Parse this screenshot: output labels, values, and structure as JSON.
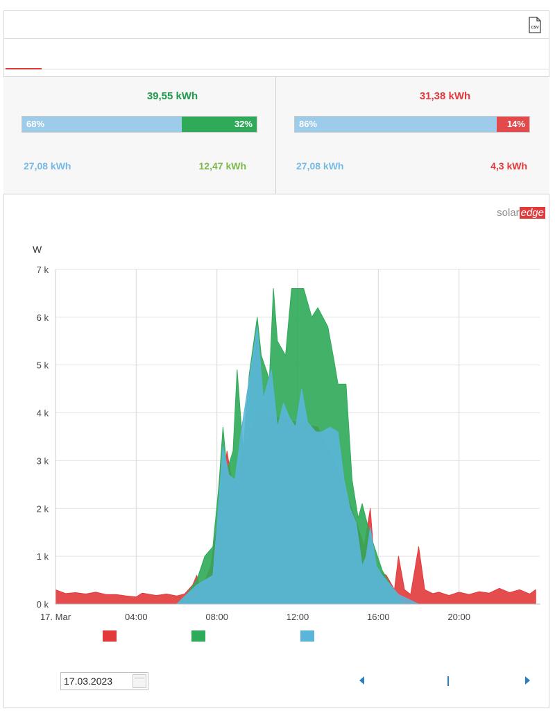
{
  "toolbar": {
    "csv_icon": "csv-file-icon",
    "csv_label": "CSV"
  },
  "summary": {
    "production": {
      "total": "39,55 kWh",
      "left_percent": "68%",
      "right_percent": "32%",
      "left_fraction": 0.68,
      "left_value": "27,08 kWh",
      "right_value": "12,47 kWh"
    },
    "consumption": {
      "total": "31,38 kWh",
      "left_percent": "86%",
      "right_percent": "14%",
      "left_fraction": 0.86,
      "left_value": "27,08 kWh",
      "right_value": "4,3 kWh"
    }
  },
  "logo": {
    "part1": "solar",
    "part2": "edge"
  },
  "colors": {
    "red": "#e2393b",
    "green": "#2eaa58",
    "blue": "#5bb5d9",
    "light_blue": "#9dcbea"
  },
  "chart_data": {
    "type": "area",
    "ylabel": "W",
    "x_unit": "hour of day",
    "xlim": [
      0,
      24
    ],
    "ylim": [
      0,
      7000
    ],
    "y_ticks": [
      "0 k",
      "1 k",
      "2 k",
      "3 k",
      "4 k",
      "5 k",
      "6 k",
      "7 k"
    ],
    "y_tick_values": [
      0,
      1000,
      2000,
      3000,
      4000,
      5000,
      6000,
      7000
    ],
    "x_ticks": [
      "17. Mar",
      "04:00",
      "08:00",
      "12:00",
      "16:00",
      "20:00"
    ],
    "x_tick_values": [
      0,
      4,
      8,
      12,
      16,
      20
    ],
    "grid": true,
    "series": [
      {
        "color": "#e2393b",
        "points": [
          [
            0,
            300
          ],
          [
            0.5,
            220
          ],
          [
            1,
            240
          ],
          [
            1.5,
            210
          ],
          [
            2,
            250
          ],
          [
            2.5,
            200
          ],
          [
            3,
            200
          ],
          [
            3.5,
            170
          ],
          [
            4,
            150
          ],
          [
            4.3,
            230
          ],
          [
            5,
            180
          ],
          [
            5.5,
            210
          ],
          [
            6,
            170
          ],
          [
            6.4,
            210
          ],
          [
            6.8,
            400
          ],
          [
            7.0,
            600
          ],
          [
            7.2,
            250
          ],
          [
            7.7,
            800
          ],
          [
            8.2,
            2200
          ],
          [
            8.5,
            3200
          ],
          [
            8.8,
            2400
          ],
          [
            9.2,
            3000
          ],
          [
            10,
            4000
          ],
          [
            11,
            3900
          ],
          [
            12,
            3800
          ],
          [
            13,
            3700
          ],
          [
            14,
            2800
          ],
          [
            14.5,
            2200
          ],
          [
            15,
            1600
          ],
          [
            15.3,
            1200
          ],
          [
            15.6,
            2000
          ],
          [
            15.8,
            900
          ],
          [
            16,
            700
          ],
          [
            16.4,
            600
          ],
          [
            16.8,
            300
          ],
          [
            17.0,
            1000
          ],
          [
            17.3,
            300
          ],
          [
            17.6,
            200
          ],
          [
            18.0,
            1200
          ],
          [
            18.3,
            300
          ],
          [
            18.7,
            220
          ],
          [
            19,
            250
          ],
          [
            19.5,
            180
          ],
          [
            20,
            250
          ],
          [
            20.5,
            200
          ],
          [
            21,
            260
          ],
          [
            21.5,
            230
          ],
          [
            22,
            330
          ],
          [
            22.5,
            240
          ],
          [
            23,
            300
          ],
          [
            23.5,
            210
          ],
          [
            23.8,
            300
          ]
        ]
      },
      {
        "color": "#2eaa58",
        "points": [
          [
            0,
            0
          ],
          [
            6,
            0
          ],
          [
            6.5,
            200
          ],
          [
            7,
            500
          ],
          [
            7.4,
            1000
          ],
          [
            7.8,
            1200
          ],
          [
            8.1,
            2500
          ],
          [
            8.3,
            3700
          ],
          [
            8.5,
            2800
          ],
          [
            8.8,
            3200
          ],
          [
            9.0,
            4900
          ],
          [
            9.3,
            3200
          ],
          [
            9.6,
            4800
          ],
          [
            10.0,
            6000
          ],
          [
            10.2,
            5200
          ],
          [
            10.6,
            4700
          ],
          [
            10.8,
            6600
          ],
          [
            11.0,
            5500
          ],
          [
            11.4,
            5200
          ],
          [
            11.7,
            6600
          ],
          [
            12.3,
            6600
          ],
          [
            12.7,
            6000
          ],
          [
            13.0,
            6200
          ],
          [
            13.5,
            5800
          ],
          [
            13.8,
            5100
          ],
          [
            14.0,
            4600
          ],
          [
            14.4,
            4600
          ],
          [
            14.7,
            2600
          ],
          [
            15.0,
            1800
          ],
          [
            15.2,
            2100
          ],
          [
            15.5,
            1600
          ],
          [
            15.8,
            1200
          ],
          [
            16.2,
            700
          ],
          [
            16.6,
            400
          ],
          [
            17.0,
            100
          ],
          [
            17.3,
            0
          ],
          [
            24,
            0
          ]
        ]
      },
      {
        "color": "#5bb5d9",
        "points": [
          [
            0,
            0
          ],
          [
            6,
            0
          ],
          [
            6.5,
            200
          ],
          [
            7,
            400
          ],
          [
            7.4,
            500
          ],
          [
            7.8,
            600
          ],
          [
            8.0,
            1600
          ],
          [
            8.3,
            3300
          ],
          [
            8.6,
            2700
          ],
          [
            8.9,
            2600
          ],
          [
            9.2,
            3600
          ],
          [
            9.6,
            4700
          ],
          [
            10.0,
            5800
          ],
          [
            10.3,
            4300
          ],
          [
            10.7,
            4900
          ],
          [
            11.0,
            3700
          ],
          [
            11.3,
            4200
          ],
          [
            11.6,
            3900
          ],
          [
            11.9,
            3700
          ],
          [
            12.2,
            4500
          ],
          [
            12.5,
            3800
          ],
          [
            12.9,
            3600
          ],
          [
            13.2,
            3600
          ],
          [
            13.6,
            3700
          ],
          [
            14.0,
            3600
          ],
          [
            14.3,
            2600
          ],
          [
            14.6,
            2000
          ],
          [
            14.9,
            1700
          ],
          [
            15.2,
            800
          ],
          [
            15.4,
            1000
          ],
          [
            15.6,
            1600
          ],
          [
            15.9,
            800
          ],
          [
            16.2,
            600
          ],
          [
            16.6,
            400
          ],
          [
            17.0,
            200
          ],
          [
            17.5,
            100
          ],
          [
            18,
            0
          ],
          [
            24,
            0
          ]
        ]
      }
    ]
  },
  "legend": {
    "red_color": "#e2393b",
    "green_color": "#2eaa58",
    "blue_color": "#5bb5d9"
  },
  "footer": {
    "date": "17.03.2023",
    "calendar_icon": "calendar-icon",
    "prev_icon": "arrow-left-icon",
    "next_icon": "arrow-right-icon"
  }
}
